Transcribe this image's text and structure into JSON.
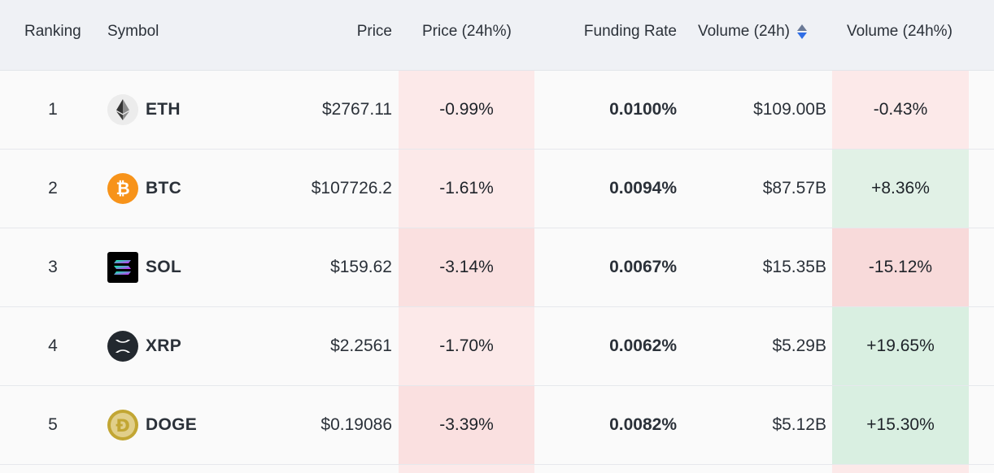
{
  "header": {
    "ranking": "Ranking",
    "symbol": "Symbol",
    "price": "Price",
    "price_change": "Price (24h%)",
    "funding_rate": "Funding Rate",
    "volume": "Volume (24h)",
    "volume_change": "Volume (24h%)"
  },
  "rows": [
    {
      "rank": "1",
      "symbol": "ETH",
      "icon": "ethereum-icon",
      "price": "$2767.11",
      "price_change": "-0.99%",
      "funding_rate": "0.0100%",
      "volume": "$109.00B",
      "volume_change": "-0.43%"
    },
    {
      "rank": "2",
      "symbol": "BTC",
      "icon": "bitcoin-icon",
      "price": "$107726.2",
      "price_change": "-1.61%",
      "funding_rate": "0.0094%",
      "volume": "$87.57B",
      "volume_change": "+8.36%"
    },
    {
      "rank": "3",
      "symbol": "SOL",
      "icon": "solana-icon",
      "price": "$159.62",
      "price_change": "-3.14%",
      "funding_rate": "0.0067%",
      "volume": "$15.35B",
      "volume_change": "-15.12%"
    },
    {
      "rank": "4",
      "symbol": "XRP",
      "icon": "xrp-icon",
      "price": "$2.2561",
      "price_change": "-1.70%",
      "funding_rate": "0.0062%",
      "volume": "$5.29B",
      "volume_change": "+19.65%"
    },
    {
      "rank": "5",
      "symbol": "DOGE",
      "icon": "dogecoin-icon",
      "price": "$0.19086",
      "price_change": "-3.39%",
      "funding_rate": "0.0082%",
      "volume": "$5.12B",
      "volume_change": "+15.30%"
    }
  ],
  "colors": {
    "negative_bg": "#fce9e9",
    "positive_bg": "#d9efe1",
    "sort_active": "#2f6ee6",
    "btc_orange": "#f7931a"
  }
}
